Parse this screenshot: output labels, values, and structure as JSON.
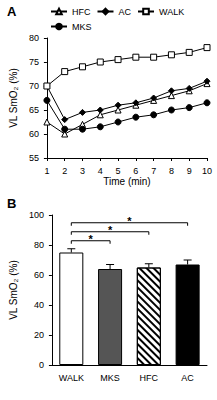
{
  "chart_data": [
    {
      "type": "line",
      "title": "A",
      "x_label": "Time (min)",
      "y_label": "VL SmO₂ (%)",
      "x": [
        1,
        2,
        3,
        4,
        5,
        6,
        7,
        8,
        9,
        10
      ],
      "xlim": [
        1,
        10
      ],
      "xticks": [
        1,
        2,
        3,
        4,
        5,
        6,
        7,
        8,
        9,
        10
      ],
      "ylim": [
        55,
        80
      ],
      "yticks": [
        55,
        60,
        65,
        70,
        75,
        80
      ],
      "grid": false,
      "legend": "top",
      "series": [
        {
          "name": "HFC",
          "color": "#000000",
          "marker": "triangle-open",
          "values": [
            62.5,
            60,
            62,
            64,
            65,
            66,
            67,
            68,
            69,
            70.5
          ]
        },
        {
          "name": "AC",
          "color": "#000000",
          "marker": "diamond",
          "values": [
            70,
            63,
            64.5,
            65,
            66,
            66.5,
            67.5,
            69,
            69.5,
            71
          ]
        },
        {
          "name": "WALK",
          "color": "#000000",
          "marker": "square-open",
          "values": [
            70,
            73,
            74,
            75,
            75.5,
            76,
            76,
            76.5,
            77,
            78
          ]
        },
        {
          "name": "MKS",
          "color": "#000000",
          "marker": "circle",
          "values": [
            67,
            61,
            61,
            61.5,
            62.5,
            63.5,
            64,
            65,
            65.5,
            66.5
          ]
        }
      ]
    },
    {
      "type": "bar",
      "title": "B",
      "y_label": "VL SmO₂ (%)",
      "categories": [
        "WALK",
        "MKS",
        "HFC",
        "AC"
      ],
      "values": [
        75,
        64,
        65,
        67
      ],
      "errors": [
        2.5,
        3,
        2.5,
        3
      ],
      "colors": [
        "#ffffff",
        "#555555",
        "#ffffff",
        "#000000"
      ],
      "ylim": [
        0,
        100
      ],
      "yticks": [
        0,
        20,
        40,
        60,
        80,
        100
      ],
      "grid": false,
      "annotations": [
        {
          "from": "WALK",
          "to": "MKS",
          "text": "*"
        },
        {
          "from": "WALK",
          "to": "HFC",
          "text": "*"
        },
        {
          "from": "WALK",
          "to": "AC",
          "text": "*"
        }
      ]
    }
  ]
}
